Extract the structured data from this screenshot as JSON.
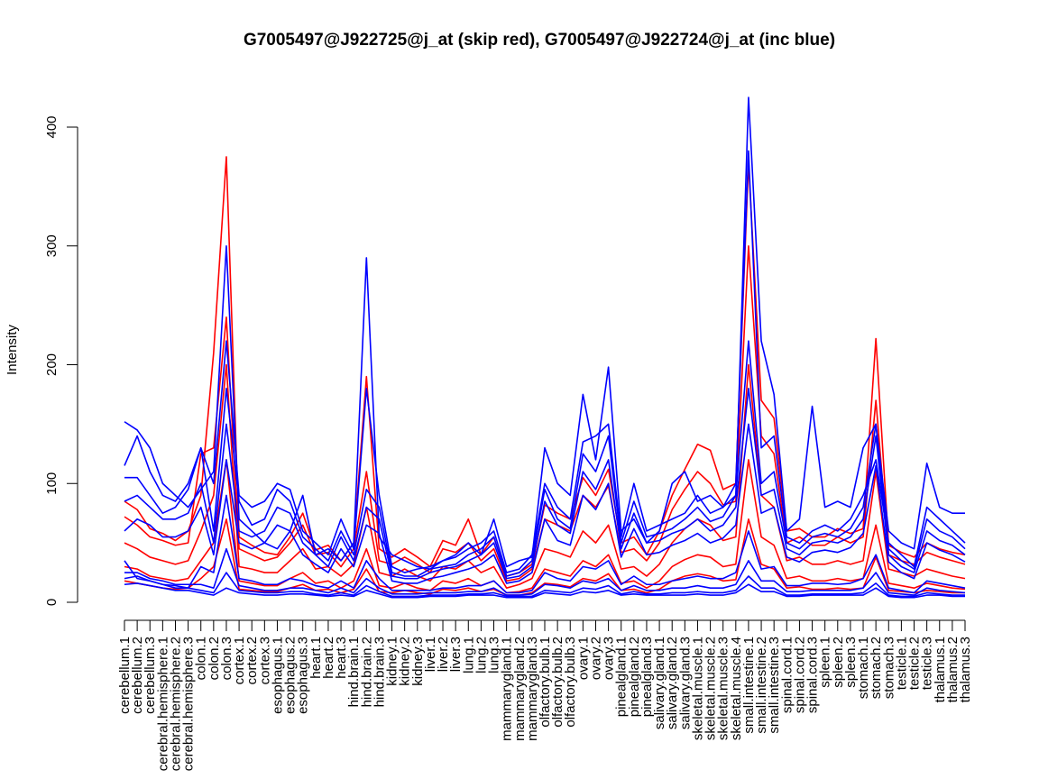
{
  "chart_data": {
    "type": "line",
    "title": "G7005497@J922725@j_at (skip red), G7005497@J922724@j_at (inc blue)",
    "xlabel": "",
    "ylabel": "Intensity",
    "ylim": [
      0,
      420
    ],
    "yticks": [
      0,
      100,
      200,
      300,
      400
    ],
    "grid": false,
    "legend": "none",
    "colors": {
      "skip": "#ff0000",
      "inc": "#0000ff"
    },
    "categories": [
      "cerebellum.1",
      "cerebellum.2",
      "cerebellum.3",
      "cerebral.hemisphere.1",
      "cerebral.hemisphere.2",
      "cerebral.hemisphere.3",
      "colon.1",
      "colon.2",
      "colon.3",
      "cortex.1",
      "cortex.2",
      "cortex.3",
      "esophagus.1",
      "esophagus.2",
      "esophagus.3",
      "heart.1",
      "heart.2",
      "heart.3",
      "hind.brain.1",
      "hind.brain.2",
      "hind.brain.3",
      "kidney.1",
      "kidney.2",
      "kidney.3",
      "liver.1",
      "liver.2",
      "liver.3",
      "lung.1",
      "lung.2",
      "lung.3",
      "mammarygland.1",
      "mammarygland.2",
      "mammarygland.3",
      "olfactory.bulb.1",
      "olfactory.bulb.2",
      "olfactory.bulb.3",
      "ovary.1",
      "ovary.2",
      "ovary.3",
      "pinealgland.1",
      "pinealgland.2",
      "pinealgland.3",
      "salivary.gland.1",
      "salivary.gland.2",
      "salivary.gland.3",
      "skeletal.muscle.1",
      "skeletal.muscle.2",
      "skeletal.muscle.3",
      "skeletal.muscle.4",
      "small.intestine.1",
      "small.intestine.2",
      "small.intestine.3",
      "spinal.cord.1",
      "spinal.cord.2",
      "spinal.cord.3",
      "spleen.1",
      "spleen.2",
      "spleen.3",
      "stomach.1",
      "stomach.2",
      "stomach.3",
      "testicle.1",
      "testicle.2",
      "testicle.3",
      "thalamus.1",
      "thalamus.2",
      "thalamus.3"
    ],
    "series": [
      {
        "group": "skip",
        "values": [
          85,
          78,
          62,
          58,
          52,
          60,
          90,
          210,
          375,
          55,
          48,
          42,
          40,
          55,
          75,
          44,
          48,
          35,
          50,
          190,
          45,
          38,
          45,
          38,
          30,
          52,
          48,
          70,
          40,
          55,
          22,
          25,
          32,
          82,
          75,
          70,
          105,
          90,
          112,
          50,
          55,
          40,
          60,
          90,
          112,
          133,
          128,
          95,
          100,
          370,
          170,
          155,
          60,
          62,
          55,
          55,
          62,
          58,
          62,
          222,
          48,
          42,
          38,
          50,
          45,
          42,
          40
        ]
      },
      {
        "group": "skip",
        "values": [
          72,
          65,
          55,
          52,
          48,
          50,
          125,
          130,
          240,
          45,
          40,
          35,
          38,
          50,
          65,
          40,
          42,
          30,
          45,
          110,
          35,
          32,
          38,
          32,
          25,
          45,
          42,
          50,
          35,
          45,
          18,
          20,
          28,
          70,
          65,
          60,
          90,
          80,
          98,
          42,
          45,
          35,
          50,
          78,
          95,
          110,
          100,
          82,
          85,
          300,
          140,
          125,
          50,
          55,
          48,
          48,
          55,
          50,
          55,
          170,
          40,
          35,
          32,
          42,
          38,
          35,
          32
        ]
      },
      {
        "group": "skip",
        "values": [
          50,
          45,
          38,
          35,
          32,
          35,
          60,
          90,
          200,
          30,
          28,
          25,
          25,
          35,
          45,
          28,
          30,
          22,
          32,
          80,
          25,
          22,
          28,
          22,
          18,
          30,
          28,
          35,
          25,
          30,
          12,
          15,
          20,
          45,
          42,
          38,
          60,
          50,
          65,
          28,
          30,
          22,
          32,
          50,
          62,
          70,
          65,
          52,
          55,
          200,
          90,
          80,
          35,
          38,
          32,
          32,
          35,
          32,
          35,
          110,
          28,
          25,
          22,
          28,
          25,
          22,
          20
        ]
      },
      {
        "group": "skip",
        "values": [
          30,
          28,
          22,
          20,
          18,
          20,
          35,
          50,
          120,
          18,
          16,
          14,
          14,
          20,
          25,
          16,
          18,
          12,
          18,
          45,
          14,
          12,
          16,
          12,
          10,
          18,
          16,
          20,
          14,
          18,
          8,
          9,
          12,
          28,
          25,
          22,
          35,
          30,
          40,
          16,
          18,
          12,
          18,
          30,
          36,
          40,
          38,
          30,
          32,
          120,
          55,
          48,
          20,
          22,
          18,
          18,
          20,
          18,
          20,
          65,
          16,
          14,
          12,
          16,
          14,
          12,
          11
        ]
      },
      {
        "group": "skip",
        "values": [
          18,
          16,
          14,
          12,
          11,
          12,
          20,
          30,
          70,
          11,
          10,
          9,
          9,
          12,
          15,
          10,
          11,
          8,
          11,
          28,
          9,
          8,
          10,
          8,
          7,
          11,
          10,
          12,
          9,
          11,
          6,
          6,
          8,
          16,
          15,
          13,
          20,
          18,
          24,
          10,
          11,
          8,
          11,
          18,
          22,
          24,
          22,
          18,
          19,
          70,
          32,
          28,
          12,
          13,
          11,
          11,
          12,
          11,
          12,
          38,
          10,
          9,
          8,
          10,
          9,
          8,
          8
        ]
      },
      {
        "group": "inc",
        "values": [
          152,
          145,
          130,
          100,
          90,
          80,
          95,
          110,
          300,
          70,
          60,
          50,
          45,
          60,
          90,
          40,
          45,
          35,
          50,
          290,
          55,
          40,
          35,
          30,
          28,
          35,
          40,
          50,
          40,
          70,
          30,
          35,
          38,
          130,
          100,
          90,
          175,
          120,
          198,
          60,
          70,
          50,
          60,
          100,
          110,
          85,
          90,
          80,
          90,
          425,
          220,
          175,
          60,
          70,
          165,
          80,
          85,
          80,
          130,
          150,
          60,
          50,
          45,
          117,
          80,
          75,
          75
        ]
      },
      {
        "group": "inc",
        "values": [
          115,
          140,
          110,
          90,
          85,
          100,
          130,
          100,
          220,
          90,
          80,
          85,
          100,
          95,
          60,
          50,
          40,
          70,
          45,
          180,
          90,
          30,
          25,
          28,
          30,
          35,
          38,
          45,
          50,
          60,
          25,
          28,
          40,
          100,
          80,
          70,
          135,
          140,
          150,
          55,
          100,
          60,
          65,
          70,
          75,
          90,
          75,
          80,
          100,
          380,
          130,
          140,
          55,
          50,
          60,
          65,
          60,
          70,
          90,
          120,
          50,
          40,
          30,
          80,
          70,
          60,
          50
        ]
      },
      {
        "group": "inc",
        "values": [
          105,
          105,
          90,
          75,
          80,
          95,
          130,
          60,
          180,
          85,
          65,
          70,
          95,
          85,
          55,
          45,
          35,
          60,
          40,
          95,
          80,
          25,
          22,
          22,
          28,
          30,
          32,
          40,
          45,
          55,
          22,
          25,
          35,
          95,
          70,
          62,
          125,
          110,
          140,
          50,
          85,
          55,
          58,
          62,
          70,
          80,
          68,
          72,
          90,
          220,
          100,
          110,
          50,
          45,
          55,
          58,
          55,
          62,
          80,
          150,
          45,
          35,
          28,
          70,
          60,
          55,
          45
        ]
      },
      {
        "group": "inc",
        "values": [
          85,
          90,
          80,
          70,
          70,
          75,
          100,
          50,
          150,
          60,
          55,
          60,
          80,
          75,
          50,
          40,
          30,
          55,
          35,
          80,
          70,
          22,
          20,
          20,
          25,
          28,
          30,
          35,
          40,
          50,
          20,
          22,
          30,
          85,
          65,
          58,
          110,
          95,
          120,
          45,
          75,
          50,
          52,
          58,
          62,
          70,
          60,
          65,
          80,
          180,
          90,
          95,
          45,
          40,
          50,
          52,
          50,
          55,
          70,
          140,
          40,
          30,
          25,
          60,
          52,
          48,
          40
        ]
      },
      {
        "group": "inc",
        "values": [
          60,
          70,
          65,
          55,
          55,
          60,
          80,
          40,
          120,
          50,
          45,
          50,
          65,
          60,
          40,
          32,
          25,
          45,
          30,
          65,
          58,
          18,
          16,
          16,
          20,
          22,
          25,
          28,
          32,
          40,
          16,
          18,
          25,
          70,
          52,
          48,
          90,
          78,
          100,
          38,
          62,
          40,
          42,
          48,
          52,
          58,
          50,
          54,
          65,
          150,
          75,
          80,
          38,
          34,
          42,
          44,
          42,
          46,
          58,
          115,
          34,
          25,
          20,
          50,
          44,
          40,
          34
        ]
      },
      {
        "group": "inc",
        "values": [
          35,
          20,
          18,
          15,
          14,
          12,
          30,
          25,
          90,
          20,
          18,
          15,
          15,
          20,
          18,
          14,
          12,
          18,
          12,
          35,
          20,
          10,
          10,
          10,
          10,
          12,
          12,
          14,
          14,
          18,
          8,
          8,
          10,
          25,
          20,
          18,
          30,
          28,
          35,
          15,
          22,
          15,
          15,
          18,
          20,
          22,
          20,
          20,
          25,
          60,
          28,
          30,
          14,
          14,
          16,
          16,
          15,
          16,
          20,
          40,
          12,
          10,
          8,
          18,
          16,
          14,
          12
        ]
      },
      {
        "group": "inc",
        "values": [
          25,
          25,
          20,
          18,
          15,
          15,
          15,
          12,
          45,
          14,
          12,
          10,
          10,
          12,
          12,
          10,
          8,
          12,
          8,
          20,
          12,
          7,
          7,
          7,
          8,
          8,
          8,
          9,
          9,
          12,
          6,
          6,
          7,
          15,
          14,
          12,
          18,
          16,
          20,
          10,
          14,
          10,
          10,
          12,
          12,
          14,
          12,
          12,
          15,
          35,
          18,
          18,
          9,
          9,
          10,
          10,
          10,
          10,
          12,
          25,
          8,
          7,
          6,
          12,
          10,
          9,
          8
        ]
      },
      {
        "group": "inc",
        "values": [
          20,
          22,
          18,
          15,
          12,
          12,
          10,
          8,
          25,
          10,
          9,
          8,
          8,
          9,
          9,
          7,
          6,
          8,
          6,
          14,
          9,
          5,
          5,
          5,
          6,
          6,
          6,
          7,
          7,
          8,
          5,
          5,
          5,
          10,
          9,
          8,
          12,
          11,
          14,
          7,
          9,
          7,
          7,
          8,
          8,
          9,
          8,
          8,
          10,
          22,
          12,
          12,
          6,
          6,
          7,
          7,
          7,
          7,
          8,
          16,
          6,
          5,
          5,
          8,
          7,
          6,
          6
        ]
      },
      {
        "group": "inc",
        "values": [
          15,
          16,
          14,
          12,
          10,
          10,
          8,
          6,
          12,
          8,
          7,
          6,
          6,
          7,
          7,
          6,
          5,
          6,
          5,
          10,
          7,
          4,
          4,
          4,
          5,
          5,
          5,
          6,
          6,
          6,
          4,
          4,
          4,
          8,
          7,
          6,
          9,
          8,
          10,
          6,
          7,
          6,
          6,
          6,
          6,
          7,
          6,
          6,
          8,
          15,
          9,
          9,
          5,
          5,
          6,
          6,
          6,
          6,
          6,
          12,
          5,
          4,
          4,
          6,
          6,
          5,
          5
        ]
      }
    ]
  }
}
